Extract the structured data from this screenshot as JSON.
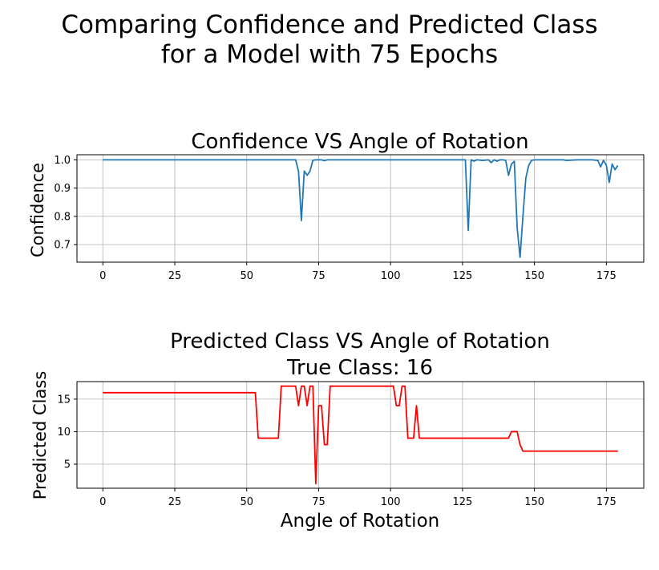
{
  "figure": {
    "title_line1": "Comparing Confidence and Predicted Class",
    "title_line2": "for a Model with 75 Epochs"
  },
  "chart_data": [
    {
      "type": "line",
      "title": "Confidence VS Angle of Rotation",
      "xlabel": "",
      "ylabel": "Confidence",
      "xlim": [
        -9,
        188
      ],
      "ylim": [
        0.638,
        1.018
      ],
      "xticks": [
        0,
        25,
        50,
        75,
        100,
        125,
        150,
        175
      ],
      "xtick_labels": [
        "0",
        "25",
        "50",
        "75",
        "100",
        "125",
        "150",
        "175"
      ],
      "yticks": [
        0.7,
        0.8,
        0.9,
        1.0
      ],
      "ytick_labels": [
        "0.7",
        "0.8",
        "0.9",
        "1.0"
      ],
      "grid": true,
      "color": "#1f77b4",
      "series": [
        {
          "x": [
            0,
            10,
            20,
            30,
            40,
            50,
            60,
            65,
            67,
            68,
            69,
            70,
            71,
            72,
            73,
            74,
            75,
            76,
            77,
            78,
            80,
            90,
            100,
            110,
            120,
            126,
            127,
            128,
            129,
            130,
            132,
            134,
            135,
            136,
            137,
            138,
            139,
            140,
            141,
            142,
            143,
            144,
            145,
            146,
            147,
            148,
            149,
            150,
            155,
            160,
            161,
            165,
            170,
            172,
            173,
            174,
            175,
            176,
            177,
            178,
            179
          ],
          "y": [
            1.0,
            1.0,
            1.0,
            1.0,
            1.0,
            1.0,
            1.0,
            1.0,
            1.0,
            0.96,
            0.785,
            0.96,
            0.945,
            0.96,
            0.998,
            1.0,
            1.0,
            1.0,
            0.997,
            1.0,
            1.0,
            1.0,
            1.0,
            1.0,
            1.0,
            1.0,
            0.75,
            1.0,
            0.995,
            1.0,
            0.998,
            1.0,
            0.99,
            1.0,
            0.995,
            1.0,
            1.0,
            0.998,
            0.945,
            0.985,
            0.995,
            0.76,
            0.655,
            0.8,
            0.935,
            0.98,
            0.998,
            1.0,
            1.0,
            1.0,
            0.998,
            1.0,
            1.0,
            0.998,
            0.975,
            0.998,
            0.98,
            0.92,
            0.985,
            0.965,
            0.98
          ]
        }
      ]
    },
    {
      "type": "line",
      "title": "Predicted Class VS Angle of Rotation",
      "subtitle": "True Class: 16",
      "xlabel": "Angle of Rotation",
      "ylabel": "Predicted Class",
      "xlim": [
        -9,
        188
      ],
      "ylim": [
        1.3,
        17.7
      ],
      "xticks": [
        0,
        25,
        50,
        75,
        100,
        125,
        150,
        175
      ],
      "xtick_labels": [
        "0",
        "25",
        "50",
        "75",
        "100",
        "125",
        "150",
        "175"
      ],
      "yticks": [
        5,
        10,
        15
      ],
      "ytick_labels": [
        "5",
        "10",
        "15"
      ],
      "grid": true,
      "color": "#ff0000",
      "series": [
        {
          "x": [
            0,
            53,
            54,
            61,
            62,
            67,
            68,
            69,
            70,
            71,
            72,
            73,
            74,
            75,
            76,
            77,
            78,
            79,
            80,
            90,
            101,
            102,
            103,
            104,
            105,
            106,
            108,
            109,
            110,
            141,
            142,
            144,
            145,
            146,
            150,
            179
          ],
          "y": [
            16,
            16,
            9,
            9,
            17,
            17,
            14,
            17,
            17,
            14,
            17,
            17,
            2,
            14,
            14,
            8,
            8,
            17,
            17,
            17,
            17,
            14,
            14,
            17,
            17,
            9,
            9,
            14,
            9,
            9,
            10,
            10,
            8,
            7,
            7,
            7
          ]
        }
      ]
    }
  ]
}
